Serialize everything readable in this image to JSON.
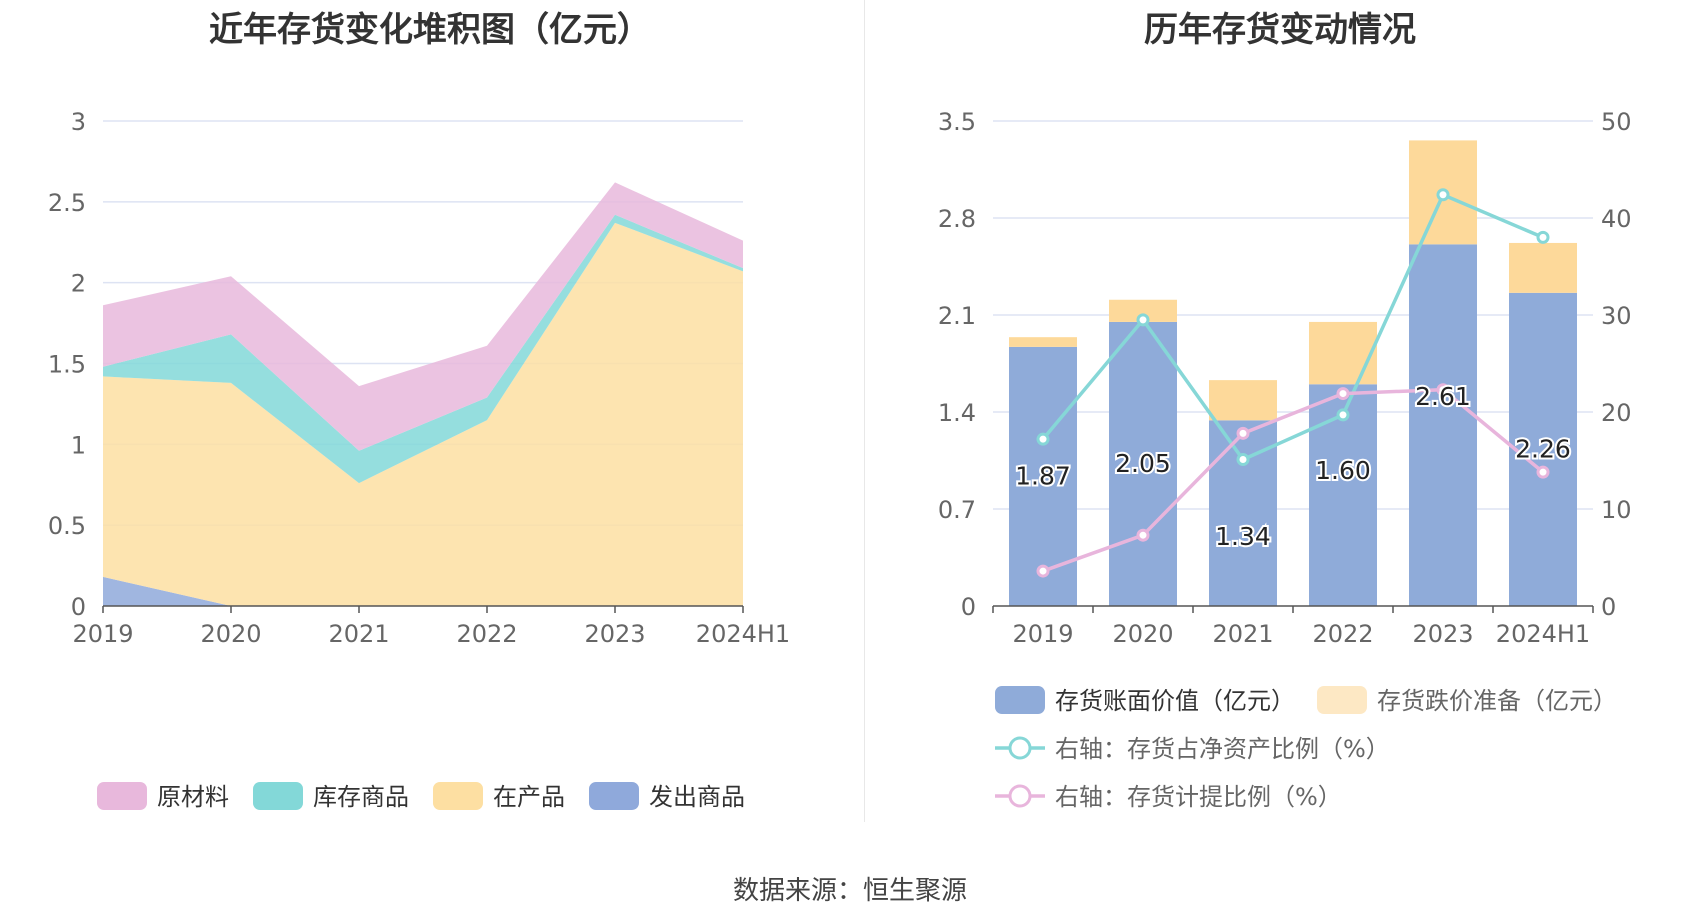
{
  "left_title": "近年存货变化堆积图（亿元）",
  "right_title": "历年存货变动情况",
  "source": "数据来源：恒生聚源",
  "colors": {
    "raw": "#e8b8dc",
    "stock": "#83d8d8",
    "wip": "#fddfa2",
    "shipped": "#8fa9db",
    "bar_book": "#8fabd9",
    "bar_reserve": "#fdd99a",
    "line_ratio": "#86d7d7",
    "line_provision": "#e8b5dc",
    "grid": "#dde3f3"
  },
  "chart_data": [
    {
      "type": "area",
      "stacked": true,
      "categories": [
        "2019",
        "2020",
        "2021",
        "2022",
        "2023",
        "2024H1"
      ],
      "ylim": [
        0,
        3
      ],
      "yticks": [
        "0",
        "0.5",
        "1",
        "1.5",
        "2",
        "2.5",
        "3"
      ],
      "series": [
        {
          "name": "发出商品",
          "key": "shipped",
          "values": [
            0.18,
            0,
            0,
            0,
            0,
            0
          ]
        },
        {
          "name": "在产品",
          "key": "wip",
          "values": [
            1.24,
            1.38,
            0.76,
            1.15,
            2.37,
            2.07
          ]
        },
        {
          "name": "库存商品",
          "key": "stock",
          "values": [
            0.06,
            0.3,
            0.2,
            0.14,
            0.05,
            0.02
          ]
        },
        {
          "name": "原材料",
          "key": "raw",
          "values": [
            0.38,
            0.36,
            0.4,
            0.32,
            0.2,
            0.17
          ]
        }
      ],
      "legend": [
        {
          "name": "原材料",
          "key": "raw"
        },
        {
          "name": "库存商品",
          "key": "stock"
        },
        {
          "name": "在产品",
          "key": "wip"
        },
        {
          "name": "发出商品",
          "key": "shipped"
        }
      ],
      "legend_position": "bottom",
      "grid": true
    },
    {
      "type": "bar",
      "stacked": true,
      "categories": [
        "2019",
        "2020",
        "2021",
        "2022",
        "2023",
        "2024H1"
      ],
      "ylim": [
        0,
        3.5
      ],
      "yticks": [
        "0",
        "0.7",
        "1.4",
        "2.1",
        "2.8",
        "3.5"
      ],
      "y2lim": [
        0,
        50
      ],
      "y2ticks": [
        "0",
        "10",
        "20",
        "30",
        "40",
        "50"
      ],
      "series": [
        {
          "name": "存货账面价值（亿元）",
          "key": "bar_book",
          "axis": "left",
          "kind": "bar",
          "values": [
            1.87,
            2.05,
            1.34,
            1.6,
            2.61,
            2.26
          ],
          "labels": [
            "1.87",
            "2.05",
            "1.34",
            "1.60",
            "2.61",
            "2.26"
          ]
        },
        {
          "name": "存货跌价准备（亿元）",
          "key": "bar_reserve",
          "axis": "left",
          "kind": "bar",
          "values": [
            0.07,
            0.16,
            0.29,
            0.45,
            0.75,
            0.36
          ]
        },
        {
          "name": "右轴：存货占净资产比例（%）",
          "key": "line_ratio",
          "axis": "right",
          "kind": "line",
          "values": [
            17.2,
            29.5,
            15.1,
            19.7,
            42.4,
            38.0
          ]
        },
        {
          "name": "右轴：存货计提比例（%）",
          "key": "line_provision",
          "axis": "right",
          "kind": "line",
          "values": [
            3.6,
            7.3,
            17.8,
            21.9,
            22.3,
            13.8
          ]
        }
      ],
      "legend_position": "bottom",
      "grid": true
    }
  ]
}
